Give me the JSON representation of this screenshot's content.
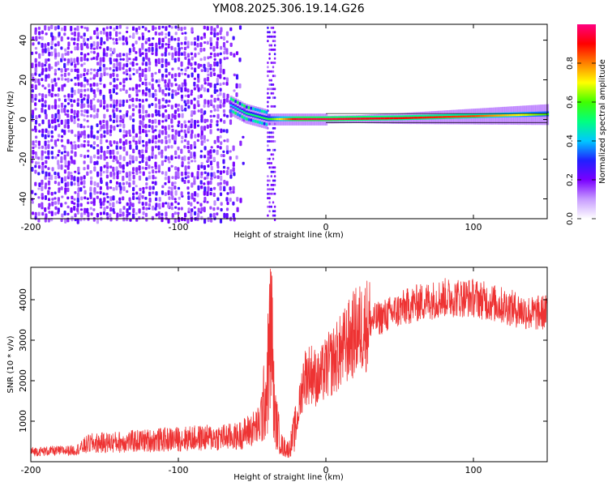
{
  "title": "YM08.2025.306.19.14.G26",
  "chart_data": [
    {
      "type": "heatmap",
      "name": "spectrogram",
      "title": "YM08.2025.306.19.14.G26",
      "xlabel": "Height of straight line (km)",
      "ylabel": "Frequency (Hz)",
      "xlim": [
        -200,
        150
      ],
      "ylim": [
        -50,
        48
      ],
      "x_ticks": [
        -200,
        -100,
        0,
        100
      ],
      "y_ticks": [
        -40,
        -20,
        0,
        20,
        40
      ],
      "x_tick_labels": [
        "-200",
        "-100",
        "0",
        "100"
      ],
      "y_tick_labels": [
        "-40",
        "-20",
        "0",
        "20",
        "40"
      ],
      "noise_region_x": [
        -200,
        -60
      ],
      "noise_stripe_x": [
        -40,
        -35
      ],
      "signal_line": [
        {
          "x": -65,
          "freq": 7,
          "amplitude": 0.4
        },
        {
          "x": -55,
          "freq": 3,
          "amplitude": 0.5
        },
        {
          "x": -40,
          "freq": 0,
          "amplitude": 0.55
        },
        {
          "x": -20,
          "freq": 0,
          "amplitude": 0.95
        },
        {
          "x": 0,
          "freq": 0,
          "amplitude": 0.95
        },
        {
          "x": 50,
          "freq": 0.5,
          "amplitude": 0.9
        },
        {
          "x": 100,
          "freq": 1.5,
          "amplitude": 0.85
        },
        {
          "x": 150,
          "freq": 2.5,
          "amplitude": 0.6
        }
      ],
      "colorbar": {
        "label": "Normalized spectral amplitude",
        "range": [
          0,
          1
        ],
        "ticks": [
          0.0,
          0.2,
          0.4,
          0.6,
          0.8
        ],
        "tick_labels": [
          "0.0",
          "0.2",
          "0.4",
          "0.6",
          "0.8"
        ],
        "colors": [
          "#ffffff",
          "#c79cff",
          "#7a00ff",
          "#2020ff",
          "#00c8ff",
          "#00ff80",
          "#40ff00",
          "#ffff00",
          "#ff8000",
          "#ff0000",
          "#ff0080"
        ]
      }
    },
    {
      "type": "line",
      "name": "snr",
      "xlabel": "Height of straight line (km)",
      "ylabel": "SNR (10 * v/v)",
      "xlim": [
        -200,
        150
      ],
      "ylim": [
        0,
        4800
      ],
      "x_ticks": [
        -200,
        -100,
        0,
        100
      ],
      "y_ticks": [
        1000,
        2000,
        3000,
        4000
      ],
      "x_tick_labels": [
        "-200",
        "-100",
        "0",
        "100"
      ],
      "y_tick_labels": [
        "1000",
        "2000",
        "3000",
        "4000"
      ],
      "color": "#ee3333",
      "trend": {
        "x": [
          -200,
          -170,
          -160,
          -100,
          -60,
          -45,
          -40,
          -37,
          -35,
          -30,
          -25,
          -20,
          -15,
          -10,
          -5,
          0,
          10,
          20,
          30,
          40,
          60,
          80,
          100,
          120,
          140,
          150
        ],
        "y": [
          250,
          280,
          450,
          560,
          620,
          900,
          1800,
          3500,
          1200,
          400,
          300,
          900,
          2100,
          2200,
          2000,
          2300,
          2700,
          3200,
          3450,
          3600,
          3900,
          4050,
          4050,
          3850,
          3650,
          3700
        ]
      }
    }
  ]
}
